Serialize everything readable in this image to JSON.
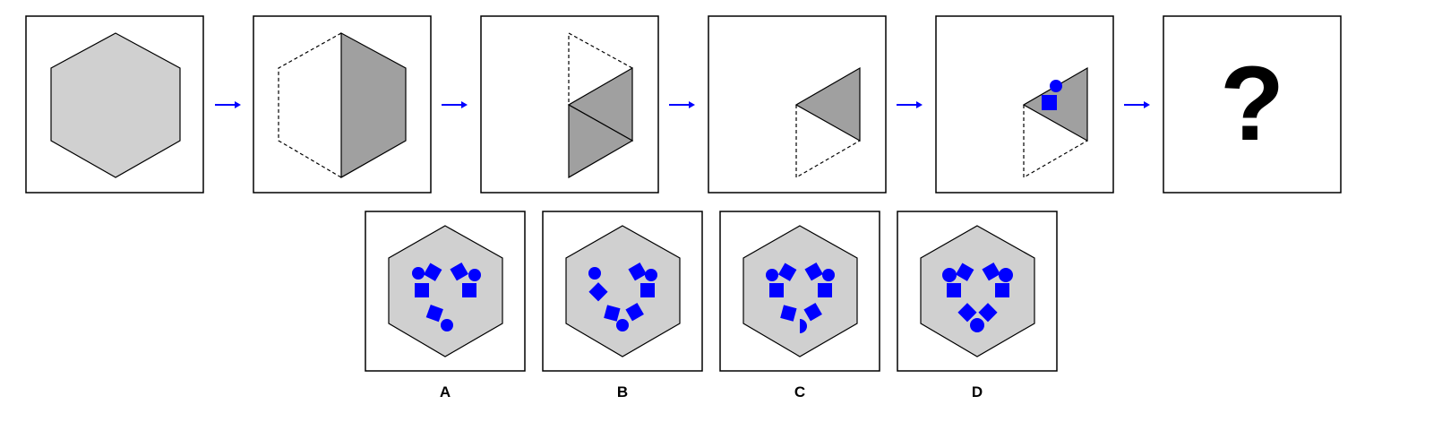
{
  "puzzle": {
    "unknown_symbol": "?",
    "steps": [
      {
        "id": "step-1",
        "description_icon": "full-hexagon"
      },
      {
        "id": "step-2",
        "description_icon": "fold-left-half"
      },
      {
        "id": "step-3",
        "description_icon": "fold-bottom-triangle"
      },
      {
        "id": "step-4",
        "description_icon": "fold-top-triangle"
      },
      {
        "id": "step-5",
        "description_icon": "cut-shapes"
      },
      {
        "id": "step-6",
        "description_icon": "question-mark"
      }
    ],
    "arrow_icon": "right-arrow-icon"
  },
  "options": [
    {
      "label": "A"
    },
    {
      "label": "B"
    },
    {
      "label": "C"
    },
    {
      "label": "D"
    }
  ],
  "colors": {
    "hex_light": "#d0d0d0",
    "hex_dark": "#a0a0a0",
    "accent_blue": "#0000ff",
    "border": "#000000"
  }
}
